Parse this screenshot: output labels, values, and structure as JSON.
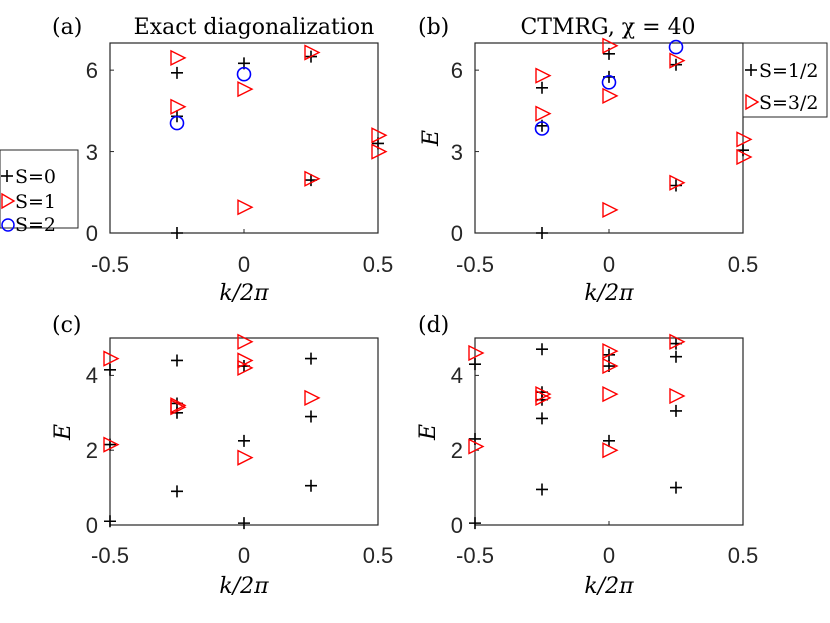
{
  "chart_data": [
    {
      "type": "scatter",
      "panel_label": "(a)",
      "title": "Exact diagonalization",
      "xlabel": "k/2π",
      "ylabel": "",
      "xlim": [
        -0.5,
        0.5
      ],
      "ylim": [
        0,
        7
      ],
      "xticks": [
        "-0.5",
        "0",
        "0.5"
      ],
      "yticks": [
        "0",
        "3",
        "6"
      ],
      "legend": {
        "placement": "left-outside",
        "entries": [
          "S=0",
          "S=1",
          "S=2"
        ]
      },
      "series": [
        {
          "name": "S=0",
          "marker": "plus",
          "color": "#000000",
          "x": [
            -0.25,
            -0.25,
            -0.25,
            0,
            0.25,
            0.25,
            0.5
          ],
          "y": [
            0,
            4.3,
            5.9,
            6.25,
            1.95,
            6.5,
            3.3
          ]
        },
        {
          "name": "S=1",
          "marker": "triangle-right",
          "color": "#ff0000",
          "x": [
            -0.25,
            -0.25,
            0,
            0,
            0.25,
            0.25,
            0.5,
            0.5
          ],
          "y": [
            4.65,
            6.45,
            0.95,
            5.3,
            2.0,
            6.65,
            3.6,
            3.0
          ]
        },
        {
          "name": "S=2",
          "marker": "circle",
          "color": "#0000ff",
          "x": [
            -0.25,
            0
          ],
          "y": [
            4.05,
            5.85
          ]
        }
      ]
    },
    {
      "type": "scatter",
      "panel_label": "(b)",
      "title": "CTMRG, χ = 40",
      "xlabel": "k/2π",
      "ylabel": "E",
      "xlim": [
        -0.5,
        0.5
      ],
      "ylim": [
        0,
        7
      ],
      "xticks": [
        "-0.5",
        "0",
        "0.5"
      ],
      "yticks": [
        "0",
        "3",
        "6"
      ],
      "legend": {
        "placement": "right-outside",
        "entries": [
          "S=1/2",
          "S=3/2"
        ]
      },
      "series": [
        {
          "name": "S=1/2",
          "marker": "plus",
          "color": "#000000",
          "x": [
            -0.25,
            -0.25,
            -0.25,
            0,
            0,
            0.25,
            0.25,
            0.5
          ],
          "y": [
            0,
            3.95,
            5.35,
            5.75,
            6.6,
            1.75,
            6.2,
            3.05
          ]
        },
        {
          "name": "S=3/2",
          "marker": "triangle-right",
          "color": "#ff0000",
          "x": [
            -0.25,
            -0.25,
            0,
            0,
            0,
            0.25,
            0.25,
            0.5,
            0.5
          ],
          "y": [
            4.4,
            5.8,
            0.85,
            5.05,
            6.9,
            1.85,
            6.35,
            3.45,
            2.8
          ]
        },
        {
          "name": "",
          "marker": "circle",
          "color": "#0000ff",
          "x": [
            -0.25,
            0,
            0.25
          ],
          "y": [
            3.85,
            5.55,
            6.85
          ]
        }
      ]
    },
    {
      "type": "scatter",
      "panel_label": "(c)",
      "title": "",
      "xlabel": "k/2π",
      "ylabel": "E",
      "xlim": [
        -0.5,
        0.5
      ],
      "ylim": [
        0,
        5
      ],
      "xticks": [
        "-0.5",
        "0",
        "0.5"
      ],
      "yticks": [
        "0",
        "2",
        "4"
      ],
      "series": [
        {
          "name": "",
          "marker": "plus",
          "color": "#000000",
          "x": [
            -0.5,
            -0.5,
            -0.5,
            -0.25,
            -0.25,
            -0.25,
            -0.25,
            0,
            0,
            0,
            0.25,
            0.25,
            0.25
          ],
          "y": [
            0.1,
            2.15,
            4.15,
            0.9,
            3.0,
            3.25,
            4.4,
            0.05,
            2.25,
            4.25,
            1.05,
            2.9,
            4.45
          ]
        },
        {
          "name": "",
          "marker": "triangle-right",
          "color": "#ff0000",
          "x": [
            -0.5,
            -0.5,
            -0.25,
            -0.25,
            0,
            0,
            0,
            0,
            0.25
          ],
          "y": [
            2.15,
            4.45,
            3.15,
            3.2,
            1.8,
            4.2,
            4.4,
            4.9,
            3.4
          ]
        }
      ]
    },
    {
      "type": "scatter",
      "panel_label": "(d)",
      "title": "",
      "xlabel": "k/2π",
      "ylabel": "E",
      "xlim": [
        -0.5,
        0.5
      ],
      "ylim": [
        0,
        5
      ],
      "xticks": [
        "-0.5",
        "0",
        "0.5"
      ],
      "yticks": [
        "0",
        "2",
        "4"
      ],
      "series": [
        {
          "name": "",
          "marker": "plus",
          "color": "#000000",
          "x": [
            -0.5,
            -0.5,
            -0.5,
            -0.25,
            -0.25,
            -0.25,
            -0.25,
            -0.25,
            0,
            0,
            0,
            0.25,
            0.25,
            0.25,
            0.25
          ],
          "y": [
            0.05,
            2.3,
            4.3,
            0.95,
            2.85,
            3.35,
            3.55,
            4.7,
            2.25,
            4.25,
            4.55,
            1.0,
            3.05,
            4.5,
            4.85
          ]
        },
        {
          "name": "",
          "marker": "triangle-right",
          "color": "#ff0000",
          "x": [
            -0.5,
            -0.5,
            -0.25,
            -0.25,
            0,
            0,
            0,
            0,
            0.25,
            0.25
          ],
          "y": [
            2.1,
            4.6,
            3.4,
            3.5,
            2.0,
            3.5,
            4.25,
            4.65,
            3.45,
            4.9
          ]
        }
      ]
    }
  ]
}
